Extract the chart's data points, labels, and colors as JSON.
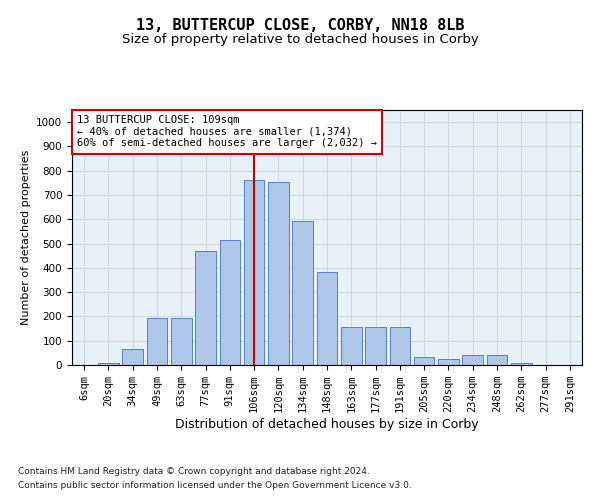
{
  "title": "13, BUTTERCUP CLOSE, CORBY, NN18 8LB",
  "subtitle": "Size of property relative to detached houses in Corby",
  "xlabel": "Distribution of detached houses by size in Corby",
  "ylabel": "Number of detached properties",
  "footnote1": "Contains HM Land Registry data © Crown copyright and database right 2024.",
  "footnote2": "Contains public sector information licensed under the Open Government Licence v3.0.",
  "annotation_title": "13 BUTTERCUP CLOSE: 109sqm",
  "annotation_line1": "← 40% of detached houses are smaller (1,374)",
  "annotation_line2": "60% of semi-detached houses are larger (2,032) →",
  "bar_labels": [
    "6sqm",
    "20sqm",
    "34sqm",
    "49sqm",
    "63sqm",
    "77sqm",
    "91sqm",
    "106sqm",
    "120sqm",
    "134sqm",
    "148sqm",
    "163sqm",
    "177sqm",
    "191sqm",
    "205sqm",
    "220sqm",
    "234sqm",
    "248sqm",
    "262sqm",
    "277sqm",
    "291sqm"
  ],
  "bar_values": [
    0,
    10,
    65,
    195,
    195,
    470,
    515,
    760,
    755,
    595,
    385,
    155,
    155,
    155,
    35,
    25,
    40,
    40,
    10,
    2,
    1
  ],
  "bar_color": "#aec6e8",
  "bar_edge_color": "#4472c4",
  "vline_x_index": 7,
  "vline_color": "#cc0000",
  "annotation_box_edge_color": "#cc0000",
  "ylim": [
    0,
    1050
  ],
  "yticks": [
    0,
    100,
    200,
    300,
    400,
    500,
    600,
    700,
    800,
    900,
    1000
  ],
  "background_color": "#ffffff",
  "axes_background": "#e8f0f8",
  "grid_color": "#cccccc",
  "title_fontsize": 11,
  "subtitle_fontsize": 9.5,
  "xlabel_fontsize": 9,
  "ylabel_fontsize": 8,
  "tick_fontsize": 7.5,
  "annotation_fontsize": 7.5,
  "footnote_fontsize": 6.5
}
